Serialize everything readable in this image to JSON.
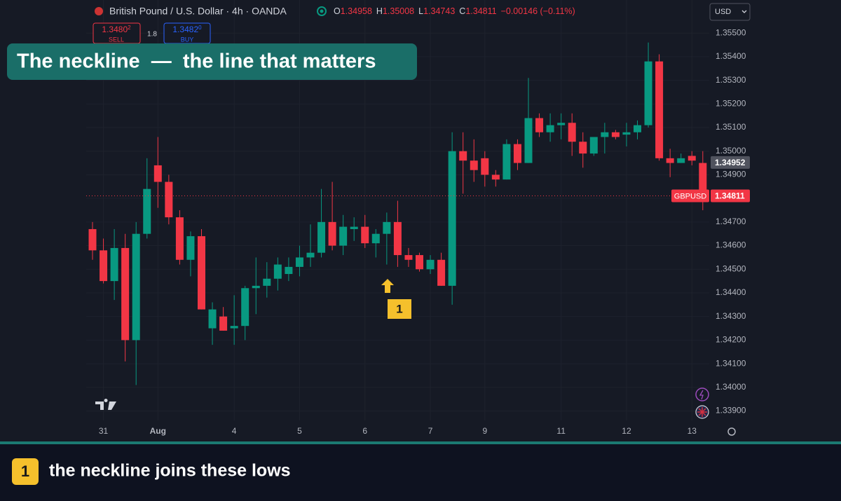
{
  "header": {
    "symbol": "British Pound / U.S. Dollar · 4h · OANDA",
    "ohlc": [
      {
        "key": "O",
        "value": "1.34958"
      },
      {
        "key": "H",
        "value": "1.35008"
      },
      {
        "key": "L",
        "value": "1.34743"
      },
      {
        "key": "C",
        "value": "1.34811"
      }
    ],
    "change": "−0.00146 (−0.11%)"
  },
  "trade": {
    "sell_price": "1.3480",
    "sell_sup": "2",
    "sell_label": "SELL",
    "spread": "1.8",
    "buy_price": "1.3482",
    "buy_sup": "0",
    "buy_label": "BUY"
  },
  "currency": "USD",
  "banner": "The neckline  —  the line that matters",
  "annotation": {
    "marker": "1"
  },
  "footer": {
    "marker": "1",
    "text": "the neckline joins these lows"
  },
  "chart_data": {
    "type": "candlestick",
    "categories": [
      null,
      "31",
      null,
      null,
      null,
      null,
      "Aug",
      null,
      null,
      null,
      null,
      null,
      null,
      "4",
      null,
      null,
      null,
      null,
      null,
      "5",
      null,
      null,
      null,
      null,
      null,
      "6",
      null,
      null,
      null,
      null,
      null,
      "7",
      null,
      null,
      null,
      null,
      "9",
      null,
      null,
      null,
      null,
      null,
      null,
      "11",
      null,
      null,
      null,
      null,
      null,
      "12",
      null,
      null,
      null,
      null,
      null,
      "13",
      null
    ],
    "open": [
      1.3467,
      1.3458,
      1.3445,
      1.3459,
      1.342,
      1.3465,
      1.3494,
      1.3487,
      1.3472,
      1.3454,
      1.3464,
      1.3425,
      1.343,
      1.3425,
      1.3426,
      1.3442,
      1.3443,
      1.3446,
      1.3448,
      1.3451,
      1.3455,
      1.3457,
      1.347,
      1.346,
      1.3467,
      1.3468,
      1.3461,
      1.3465,
      1.347,
      1.3456,
      1.3456,
      1.345,
      1.3454,
      1.3443,
      1.35,
      1.3496,
      1.3497,
      1.349,
      1.3488,
      1.3503,
      1.3495,
      1.3514,
      1.3508,
      1.3511,
      1.3512,
      1.3504,
      1.3499,
      1.3506,
      1.3508,
      1.3507,
      1.3508,
      1.3511,
      1.3538,
      1.3497,
      1.3495,
      1.3498,
      1.3495
    ],
    "high": [
      1.347,
      1.3463,
      1.3467,
      1.3465,
      1.347,
      1.3497,
      1.3506,
      1.349,
      1.3475,
      1.3466,
      1.3467,
      1.3436,
      1.3434,
      1.3439,
      1.3443,
      1.3455,
      1.3453,
      1.3455,
      1.3455,
      1.346,
      1.3469,
      1.3484,
      1.3487,
      1.3473,
      1.3472,
      1.3473,
      1.3467,
      1.3474,
      1.3479,
      1.3459,
      1.3457,
      1.3456,
      1.3457,
      1.3508,
      1.3508,
      1.3505,
      1.35,
      1.3492,
      1.3505,
      1.3505,
      1.3531,
      1.3516,
      1.3516,
      1.3516,
      1.3516,
      1.3508,
      1.3506,
      1.3512,
      1.3509,
      1.3512,
      1.3513,
      1.3546,
      1.3541,
      1.3501,
      1.3499,
      1.35,
      1.35
    ],
    "low": [
      1.3454,
      1.3444,
      1.3437,
      1.3411,
      1.3401,
      1.3463,
      1.3476,
      1.3469,
      1.3452,
      1.3447,
      1.3433,
      1.3418,
      1.3424,
      1.3418,
      1.342,
      1.3431,
      1.3438,
      1.3441,
      1.3445,
      1.3447,
      1.3451,
      1.3455,
      1.3458,
      1.3456,
      1.3462,
      1.3459,
      1.3455,
      1.3452,
      1.3451,
      1.3451,
      1.3449,
      1.3448,
      1.3443,
      1.3435,
      1.3482,
      1.3487,
      1.3485,
      1.3485,
      1.3488,
      1.3492,
      1.3495,
      1.3506,
      1.3504,
      1.3505,
      1.3498,
      1.3493,
      1.3498,
      1.3499,
      1.3505,
      1.3502,
      1.3505,
      1.351,
      1.3496,
      1.3489,
      1.3495,
      1.3494,
      1.3475
    ],
    "close": [
      1.3458,
      1.3445,
      1.3459,
      1.342,
      1.3465,
      1.3484,
      1.3487,
      1.3472,
      1.3454,
      1.3464,
      1.3433,
      1.3433,
      1.3424,
      1.3426,
      1.3442,
      1.3443,
      1.3446,
      1.3452,
      1.3451,
      1.3455,
      1.3457,
      1.347,
      1.346,
      1.3468,
      1.3468,
      1.3461,
      1.3465,
      1.347,
      1.3456,
      1.3454,
      1.345,
      1.3454,
      1.3443,
      1.35,
      1.3496,
      1.3492,
      1.349,
      1.3488,
      1.3503,
      1.3495,
      1.3514,
      1.3508,
      1.3511,
      1.3512,
      1.3504,
      1.3499,
      1.3506,
      1.3508,
      1.3506,
      1.3508,
      1.3511,
      1.3538,
      1.3497,
      1.3495,
      1.3497,
      1.3496,
      1.34811
    ],
    "up_color": "#089981",
    "down_color": "#f23645",
    "ylim": [
      1.3386,
      1.3564
    ],
    "yticks": [
      {
        "value": 1.339,
        "label": "1.33900"
      },
      {
        "value": 1.34,
        "label": "1.34000"
      },
      {
        "value": 1.341,
        "label": "1.34100"
      },
      {
        "value": 1.342,
        "label": "1.34200"
      },
      {
        "value": 1.343,
        "label": "1.34300"
      },
      {
        "value": 1.344,
        "label": "1.34400"
      },
      {
        "value": 1.345,
        "label": "1.34500"
      },
      {
        "value": 1.346,
        "label": "1.34600"
      },
      {
        "value": 1.347,
        "label": "1.34700"
      },
      {
        "value": 1.348,
        "label": "1.34800"
      },
      {
        "value": 1.349,
        "label": "1.34900"
      },
      {
        "value": 1.35,
        "label": "1.35000"
      },
      {
        "value": 1.351,
        "label": "1.35100"
      },
      {
        "value": 1.352,
        "label": "1.35200"
      },
      {
        "value": 1.353,
        "label": "1.35300"
      },
      {
        "value": 1.354,
        "label": "1.35400"
      },
      {
        "value": 1.355,
        "label": "1.35500"
      }
    ],
    "price_tags": [
      {
        "value": 1.34952
      },
      {
        "name": "GBPUSD",
        "value": 1.34811
      }
    ],
    "grid": true
  }
}
